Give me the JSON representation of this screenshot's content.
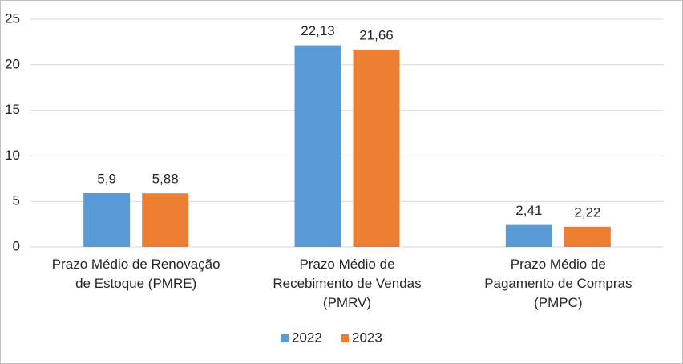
{
  "chart_data": {
    "type": "bar",
    "categories": [
      "Prazo Médio de Renovação\nde Estoque (PMRE)",
      "Prazo Médio de\nRecebimento de Vendas\n(PMRV)",
      "Prazo Médio de\nPagamento de Compras\n(PMPC)"
    ],
    "series": [
      {
        "name": "2022",
        "color": "#5b9bd5",
        "values": [
          5.9,
          22.13,
          2.41
        ],
        "value_labels": [
          "5,9",
          "22,13",
          "2,41"
        ]
      },
      {
        "name": "2023",
        "color": "#ed7d31",
        "values": [
          5.88,
          21.66,
          2.22
        ],
        "value_labels": [
          "5,88",
          "21,66",
          "2,22"
        ]
      }
    ],
    "ylim": [
      0,
      25
    ],
    "yticks": [
      0,
      5,
      10,
      15,
      20,
      25
    ],
    "grid": true,
    "legend": "bottom"
  }
}
